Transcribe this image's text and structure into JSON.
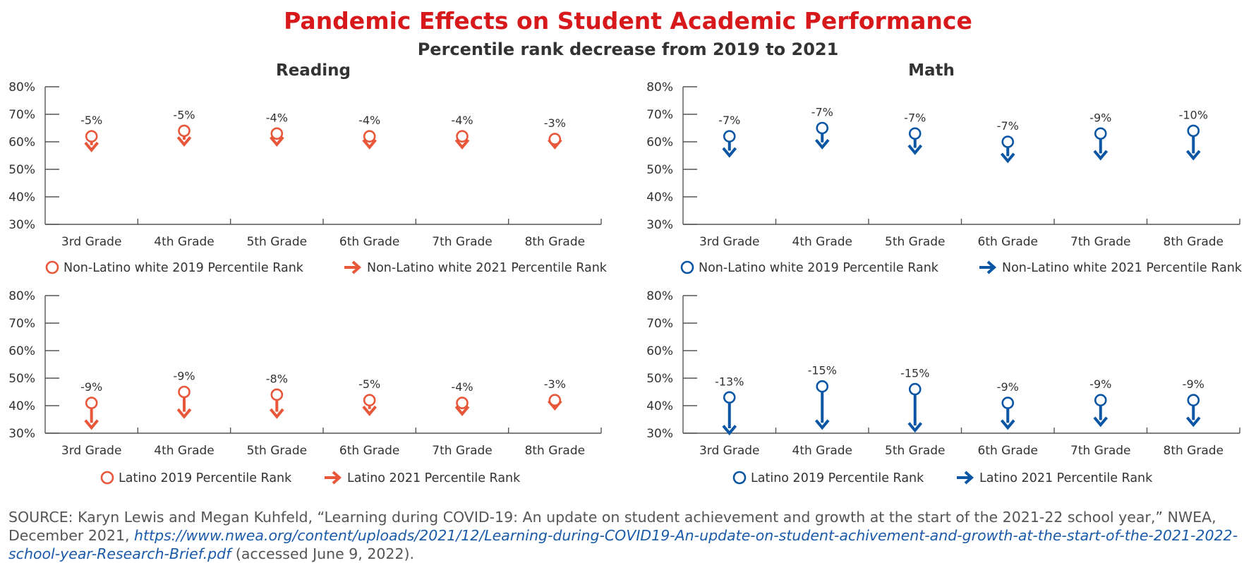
{
  "title": "Pandemic Effects on Student Academic Performance",
  "subtitle": "Percentile rank decrease from 2019 to 2021",
  "colors": {
    "reading": "#e8573a",
    "math": "#0b56a4",
    "title": "#d7191c",
    "axis": "#555555"
  },
  "chart_data": [
    {
      "type": "scatter",
      "panel": "Reading",
      "group": "Non-Latino white",
      "categories": [
        "3rd Grade",
        "4th Grade",
        "5th Grade",
        "6th Grade",
        "7th Grade",
        "8th Grade"
      ],
      "series": [
        {
          "name": "Non-Latino white 2019 Percentile Rank",
          "values": [
            62,
            64,
            63,
            62,
            62,
            61
          ],
          "marker": "circle"
        },
        {
          "name": "Non-Latino white 2021 Percentile Rank",
          "values": [
            57,
            59,
            59,
            58,
            58,
            58
          ],
          "marker": "arrow"
        }
      ],
      "labels": [
        "-5%",
        "-5%",
        "-4%",
        "-4%",
        "-4%",
        "-3%"
      ],
      "yticks": [
        "80%",
        "70%",
        "60%",
        "50%",
        "40%",
        "30%"
      ],
      "ylim": [
        30,
        80
      ],
      "color": "#e8573a"
    },
    {
      "type": "scatter",
      "panel": "Math",
      "group": "Non-Latino white",
      "categories": [
        "3rd Grade",
        "4th Grade",
        "5th Grade",
        "6th Grade",
        "7th Grade",
        "8th Grade"
      ],
      "series": [
        {
          "name": "Non-Latino white 2019 Percentile Rank",
          "values": [
            62,
            65,
            63,
            60,
            63,
            64
          ],
          "marker": "circle"
        },
        {
          "name": "Non-Latino white 2021 Percentile Rank",
          "values": [
            55,
            58,
            56,
            53,
            54,
            54
          ],
          "marker": "arrow"
        }
      ],
      "labels": [
        "-7%",
        "-7%",
        "-7%",
        "-7%",
        "-9%",
        "-10%"
      ],
      "yticks": [
        "80%",
        "70%",
        "60%",
        "50%",
        "40%",
        "30%"
      ],
      "ylim": [
        30,
        80
      ],
      "color": "#0b56a4"
    },
    {
      "type": "scatter",
      "panel": "Reading",
      "group": "Latino",
      "categories": [
        "3rd Grade",
        "4th Grade",
        "5th Grade",
        "6th Grade",
        "7th Grade",
        "8th Grade"
      ],
      "series": [
        {
          "name": "Latino 2019 Percentile Rank",
          "values": [
            41,
            45,
            44,
            42,
            41,
            42
          ],
          "marker": "circle"
        },
        {
          "name": "Latino 2021 Percentile Rank",
          "values": [
            32,
            36,
            36,
            37,
            37,
            39
          ],
          "marker": "arrow"
        }
      ],
      "labels": [
        "-9%",
        "-9%",
        "-8%",
        "-5%",
        "-4%",
        "-3%"
      ],
      "yticks": [
        "80%",
        "70%",
        "60%",
        "50%",
        "40%",
        "30%"
      ],
      "ylim": [
        30,
        80
      ],
      "color": "#e8573a"
    },
    {
      "type": "scatter",
      "panel": "Math",
      "group": "Latino",
      "categories": [
        "3rd Grade",
        "4th Grade",
        "5th Grade",
        "6th Grade",
        "7th Grade",
        "8th Grade"
      ],
      "series": [
        {
          "name": "Latino 2019 Percentile Rank",
          "values": [
            43,
            47,
            46,
            41,
            42,
            42
          ],
          "marker": "circle"
        },
        {
          "name": "Latino 2021 Percentile Rank",
          "values": [
            30,
            32,
            31,
            32,
            33,
            33
          ],
          "marker": "arrow"
        }
      ],
      "labels": [
        "-13%",
        "-15%",
        "-15%",
        "-9%",
        "-9%",
        "-9%"
      ],
      "yticks": [
        "80%",
        "70%",
        "60%",
        "50%",
        "40%",
        "30%"
      ],
      "ylim": [
        30,
        80
      ],
      "color": "#0b56a4"
    }
  ],
  "source": {
    "prefix": "SOURCE: Karyn Lewis and Megan Kuhfeld, “Learning during COVID-19: An update on student achievement and growth at the start of the 2021-22 school year,” NWEA, December 2021, ",
    "link": "https://www.nwea.org/content/uploads/2021/12/Learning-during-COVID19-An-update-on-student-achivement-and-growth-at-the-start-of-the-2021-2022-school-year-Research-Brief.pdf",
    "suffix": " (accessed June 9, 2022)."
  }
}
